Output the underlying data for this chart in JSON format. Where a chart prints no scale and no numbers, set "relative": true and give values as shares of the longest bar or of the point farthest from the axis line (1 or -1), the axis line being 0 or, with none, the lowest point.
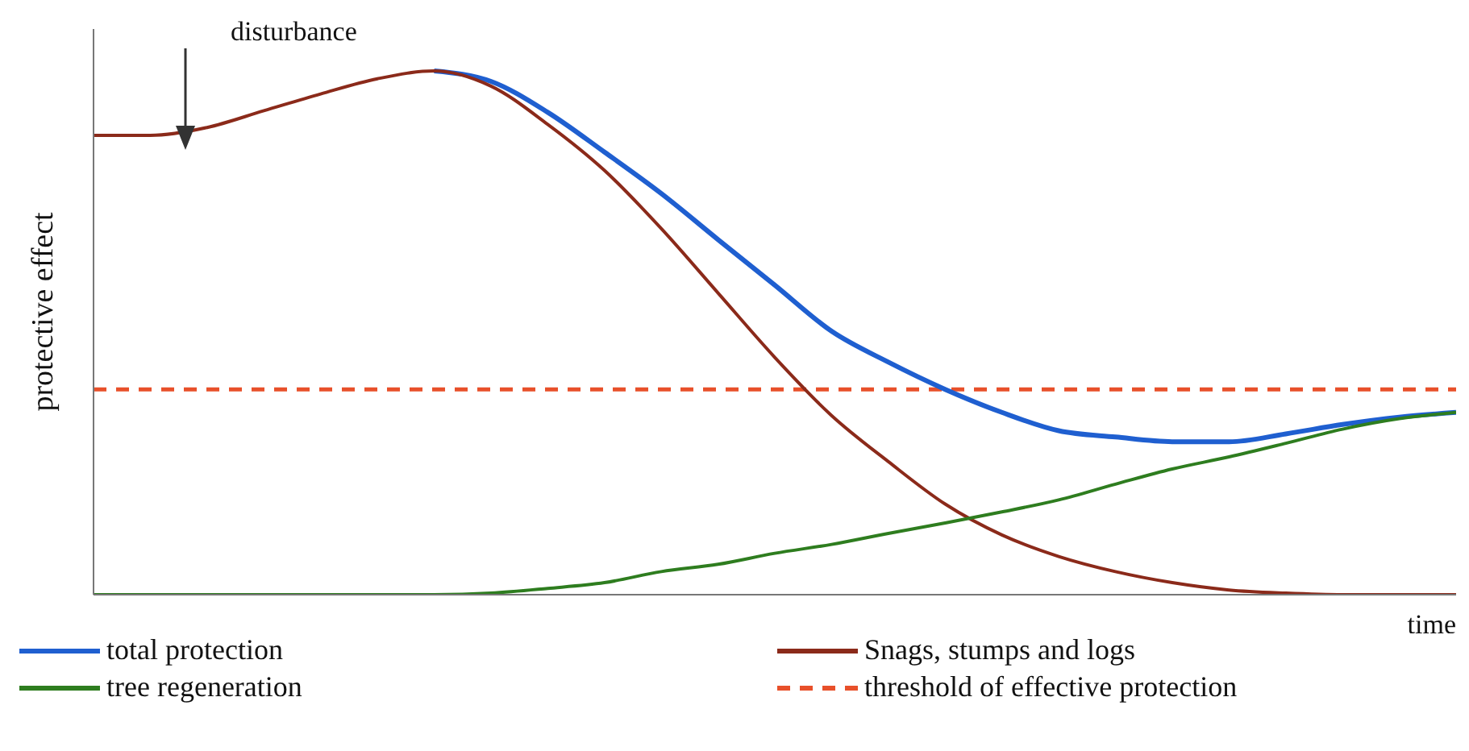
{
  "chart_data": {
    "type": "line",
    "relative": true,
    "ylabel": "protective effect",
    "xlabel": "time",
    "categories": [
      null,
      null,
      null,
      null,
      null,
      null,
      null,
      null,
      null,
      null,
      null,
      null,
      null,
      null,
      null,
      null,
      null,
      null,
      null,
      null,
      null,
      null,
      null,
      null,
      null
    ],
    "series": [
      {
        "name": "total protection",
        "color": "#1f5fd0",
        "values": [
          null,
          null,
          null,
          null,
          null,
          null,
          1.0,
          0.98,
          0.921,
          0.845,
          0.766,
          0.678,
          0.591,
          0.503,
          0.444,
          0.392,
          0.348,
          0.313,
          0.301,
          0.292,
          0.292,
          0.307,
          0.325,
          0.339,
          0.348
        ]
      },
      {
        "name": "Snags, stumps and logs",
        "color": "#8b2a1a",
        "values": [
          0.877,
          0.877,
          0.892,
          0.924,
          0.956,
          0.985,
          1.0,
          0.971,
          0.898,
          0.81,
          0.699,
          0.576,
          0.453,
          0.342,
          0.254,
          0.173,
          0.114,
          0.073,
          0.044,
          0.023,
          0.009,
          0.003,
          0,
          0,
          0
        ]
      },
      {
        "name": "tree regeneration",
        "color": "#2e7d1f",
        "values": [
          0,
          0,
          0,
          0,
          0,
          0,
          0,
          0.003,
          0.012,
          0.023,
          0.044,
          0.058,
          0.079,
          0.096,
          0.117,
          0.137,
          0.158,
          0.181,
          0.211,
          0.24,
          0.263,
          0.289,
          0.316,
          0.336,
          0.348
        ]
      }
    ],
    "ref_lines": [
      {
        "axis": "y",
        "value": 0.392,
        "label": "threshold of effective protection",
        "color": "#e8502a",
        "line_style": "dashed"
      }
    ],
    "annotations": [
      "disturbance"
    ],
    "legend": "bottom",
    "grid": false,
    "marker": "none",
    "line_style": "solid"
  }
}
